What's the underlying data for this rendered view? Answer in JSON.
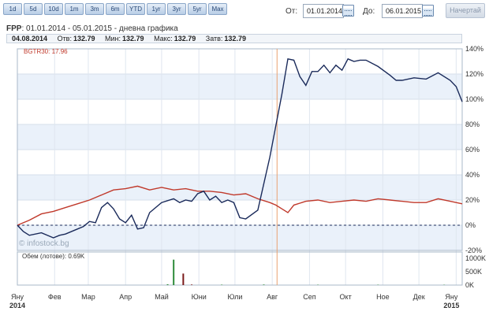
{
  "toolbar": {
    "periods": [
      "1d",
      "5d",
      "10d",
      "1m",
      "3m",
      "6m",
      "YTD",
      "1yr",
      "3yr",
      "5yr",
      "Max"
    ],
    "from_label": "От:",
    "from_value": "01.01.2014",
    "to_label": "До:",
    "to_value": "06.01.2015",
    "draw_label": "Начертай"
  },
  "header": {
    "symbol": "FPP",
    "range_text": ": 01.01.2014 - 05.01.2015 - дневна графика"
  },
  "info": {
    "date": "04.08.2014",
    "open_label": "Отв:",
    "open": "132.79",
    "min_label": "Мин:",
    "min": "132.79",
    "max_label": "Макс:",
    "max": "132.79",
    "close_label": "Затв:",
    "close": "132.79"
  },
  "watermark": "© infostock.bg",
  "chart_data": [
    {
      "type": "line",
      "y_ticks": [
        "140%",
        "120%",
        "100%",
        "80%",
        "60%",
        "40%",
        "20%",
        "0%",
        "-20%"
      ],
      "ylim": [
        -20,
        140
      ],
      "x_ticks": [
        "Яну\n2014",
        "Фев",
        "Мар",
        "Апр",
        "Май",
        "Юни",
        "Юли",
        "Авг",
        "Сеп",
        "Окт",
        "Ное",
        "Дек",
        "Яну\n2015"
      ],
      "xlim": [
        0,
        370
      ],
      "legend": "top-left",
      "baseline": 0,
      "series": [
        {
          "name": "BGTR30: 17.96",
          "color": "#c0392b",
          "points": [
            [
              0,
              0
            ],
            [
              10,
              4
            ],
            [
              20,
              9
            ],
            [
              30,
              11
            ],
            [
              40,
              14
            ],
            [
              50,
              17
            ],
            [
              60,
              20
            ],
            [
              70,
              24
            ],
            [
              80,
              28
            ],
            [
              90,
              29
            ],
            [
              100,
              31
            ],
            [
              110,
              28
            ],
            [
              120,
              30
            ],
            [
              130,
              28
            ],
            [
              140,
              29
            ],
            [
              150,
              27
            ],
            [
              160,
              27
            ],
            [
              170,
              26
            ],
            [
              180,
              24
            ],
            [
              190,
              25
            ],
            [
              200,
              21
            ],
            [
              210,
              18
            ],
            [
              215,
              16
            ],
            [
              220,
              13
            ],
            [
              225,
              10
            ],
            [
              230,
              16
            ],
            [
              240,
              19
            ],
            [
              250,
              20
            ],
            [
              260,
              18
            ],
            [
              270,
              19
            ],
            [
              280,
              20
            ],
            [
              290,
              19
            ],
            [
              300,
              21
            ],
            [
              310,
              20
            ],
            [
              320,
              19
            ],
            [
              330,
              18
            ],
            [
              340,
              18
            ],
            [
              350,
              21
            ],
            [
              360,
              19
            ],
            [
              370,
              17
            ]
          ]
        },
        {
          "name": "FPP",
          "color": "#1a2a5a",
          "points": [
            [
              0,
              0
            ],
            [
              5,
              -5
            ],
            [
              10,
              -8
            ],
            [
              20,
              -6
            ],
            [
              30,
              -10
            ],
            [
              35,
              -8
            ],
            [
              40,
              -7
            ],
            [
              50,
              -3
            ],
            [
              55,
              -1
            ],
            [
              60,
              3
            ],
            [
              65,
              2
            ],
            [
              70,
              14
            ],
            [
              75,
              18
            ],
            [
              80,
              13
            ],
            [
              85,
              5
            ],
            [
              90,
              2
            ],
            [
              95,
              8
            ],
            [
              100,
              -3
            ],
            [
              105,
              -2
            ],
            [
              110,
              10
            ],
            [
              120,
              18
            ],
            [
              130,
              21
            ],
            [
              135,
              18
            ],
            [
              140,
              20
            ],
            [
              145,
              19
            ],
            [
              150,
              25
            ],
            [
              155,
              27
            ],
            [
              160,
              20
            ],
            [
              165,
              23
            ],
            [
              170,
              18
            ],
            [
              175,
              20
            ],
            [
              180,
              18
            ],
            [
              185,
              6
            ],
            [
              190,
              5
            ],
            [
              200,
              12
            ],
            [
              210,
              54
            ],
            [
              220,
              104
            ],
            [
              225,
              132
            ],
            [
              230,
              131
            ],
            [
              235,
              118
            ],
            [
              240,
              111
            ],
            [
              245,
              122
            ],
            [
              250,
              122
            ],
            [
              255,
              127
            ],
            [
              260,
              121
            ],
            [
              265,
              127
            ],
            [
              270,
              123
            ],
            [
              275,
              132
            ],
            [
              280,
              130
            ],
            [
              285,
              131
            ],
            [
              290,
              131
            ],
            [
              300,
              126
            ],
            [
              310,
              119
            ],
            [
              315,
              115
            ],
            [
              320,
              115
            ],
            [
              330,
              117
            ],
            [
              340,
              116
            ],
            [
              350,
              121
            ],
            [
              360,
              115
            ],
            [
              365,
              110
            ],
            [
              370,
              98
            ]
          ]
        }
      ]
    },
    {
      "type": "bar",
      "legend_text": "Обем (лотове): 0.69K",
      "y_ticks": [
        "1000K",
        "500K",
        "0K"
      ],
      "ylim": [
        0,
        1000
      ],
      "bars": [
        {
          "x": 130,
          "value": 950,
          "color": "#2e8b3a"
        },
        {
          "x": 138,
          "value": 430,
          "color": "#7a1a1a"
        },
        {
          "x": 125,
          "value": 30,
          "color": "#2e8b3a"
        },
        {
          "x": 145,
          "value": 20,
          "color": "#7a1a1a"
        },
        {
          "x": 170,
          "value": 15,
          "color": "#2e8b3a"
        },
        {
          "x": 205,
          "value": 20,
          "color": "#2e8b3a"
        },
        {
          "x": 250,
          "value": 12,
          "color": "#2e8b3a"
        },
        {
          "x": 300,
          "value": 12,
          "color": "#2e8b3a"
        },
        {
          "x": 355,
          "value": 10,
          "color": "#2e8b3a"
        }
      ]
    }
  ]
}
